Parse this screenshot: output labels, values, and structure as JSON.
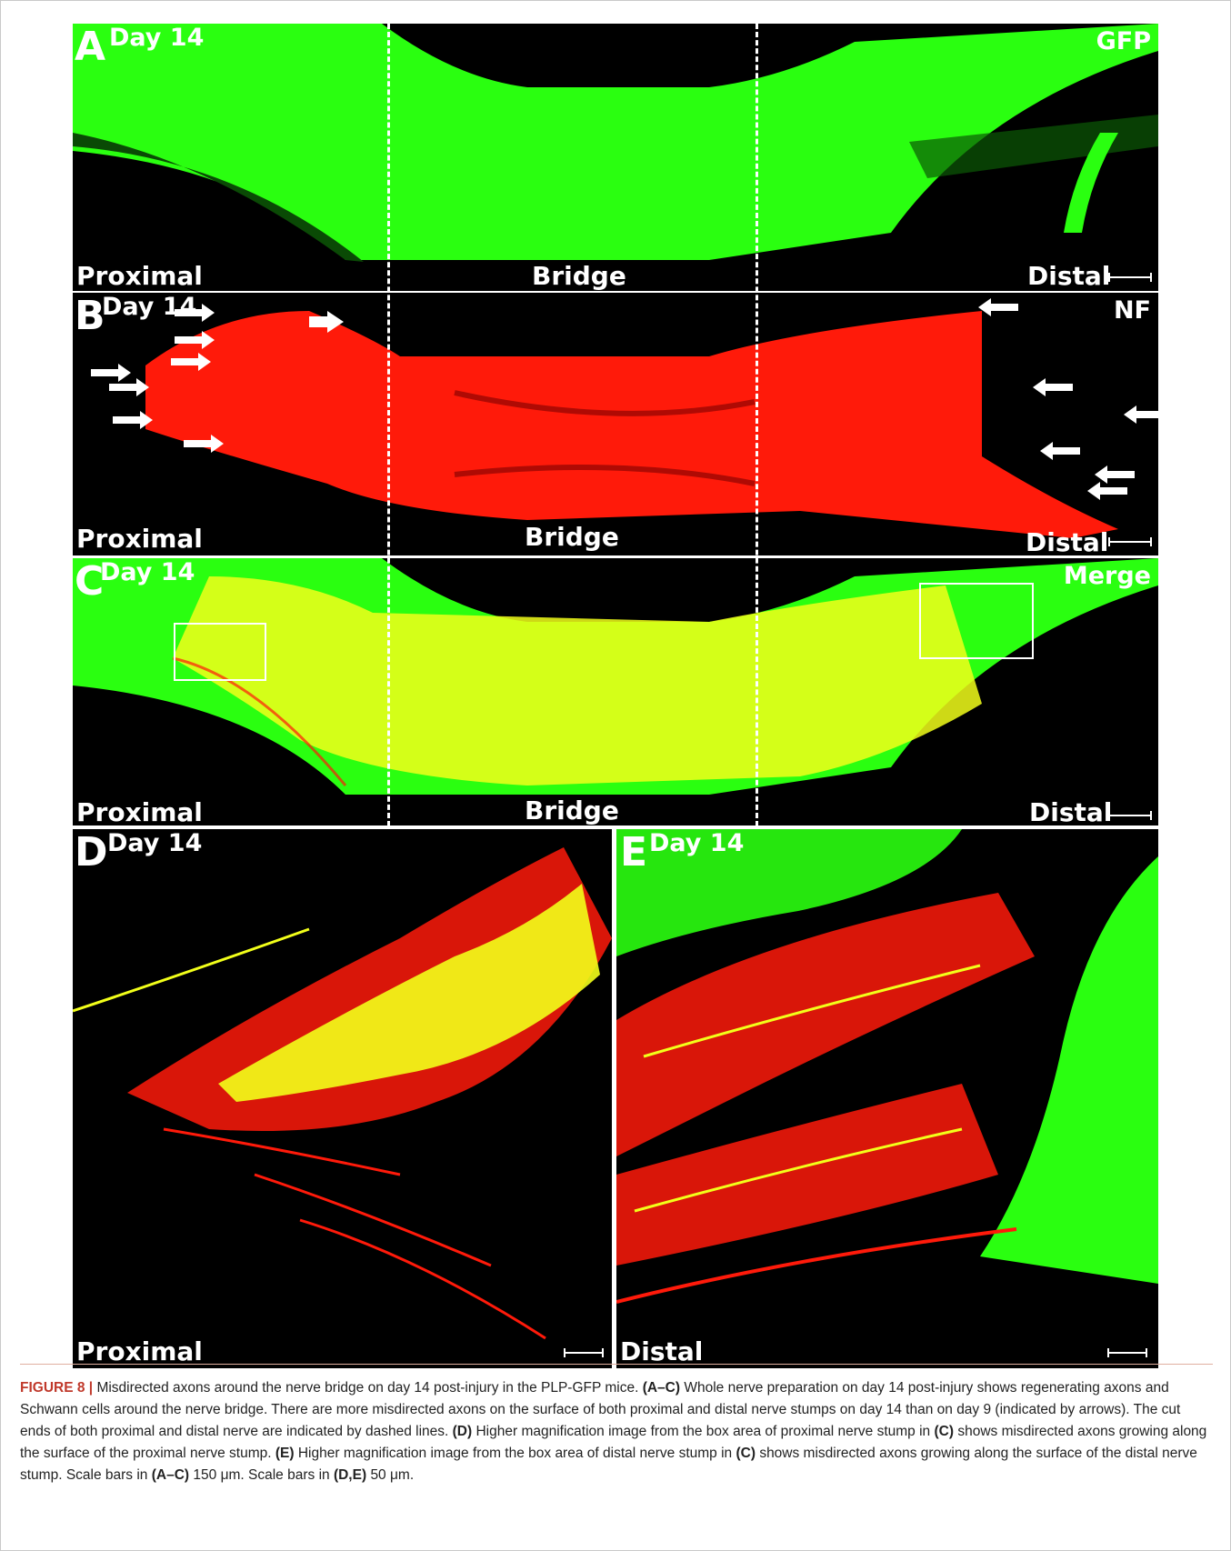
{
  "panels": {
    "A": {
      "letter": "A",
      "day": "Day 14",
      "channel": "GFP",
      "proximal": "Proximal",
      "bridge": "Bridge",
      "distal": "Distal"
    },
    "B": {
      "letter": "B",
      "day": "Day 14",
      "channel": "NF",
      "proximal": "Proximal",
      "bridge": "Bridge",
      "distal": "Distal"
    },
    "C": {
      "letter": "C",
      "day": "Day 14",
      "channel": "Merge",
      "proximal": "Proximal",
      "bridge": "Bridge",
      "distal": "Distal"
    },
    "D": {
      "letter": "D",
      "day": "Day 14",
      "position": "Proximal"
    },
    "E": {
      "letter": "E",
      "day": "Day 14",
      "position": "Distal"
    }
  },
  "colors": {
    "gfp": "#2aff10",
    "nf": "#ff1a0a",
    "merge": "#f2ff1a",
    "background": "#000000"
  },
  "caption": {
    "figure_label": "FIGURE 8",
    "separator": "|",
    "s1": "Misdirected axons around the nerve bridge on day 14 post-injury in the PLP-GFP mice.",
    "ref_ac": "(A–C)",
    "s2": "Whole nerve preparation on day 14 post-injury shows regenerating axons and Schwann cells around the nerve bridge. There are more misdirected axons on the surface of both proximal and distal nerve stumps on day 14 than on day 9 (indicated by arrows). The cut ends of both proximal and distal nerve are indicated by dashed lines.",
    "ref_d": "(D)",
    "s3": "Higher magnification image from the box area of proximal nerve stump in",
    "ref_c1": "(C)",
    "s4": "shows misdirected axons growing along the surface of the proximal nerve stump.",
    "ref_e": "(E)",
    "s5": "Higher magnification image from the box area of distal nerve stump in",
    "ref_c2": "(C)",
    "s6": "shows misdirected axons growing along the surface of the distal nerve stump. Scale bars in",
    "ref_ac2": "(A–C)",
    "s7": "150 μm. Scale bars in",
    "ref_de": "(D,E)",
    "s8": "50 μm."
  }
}
